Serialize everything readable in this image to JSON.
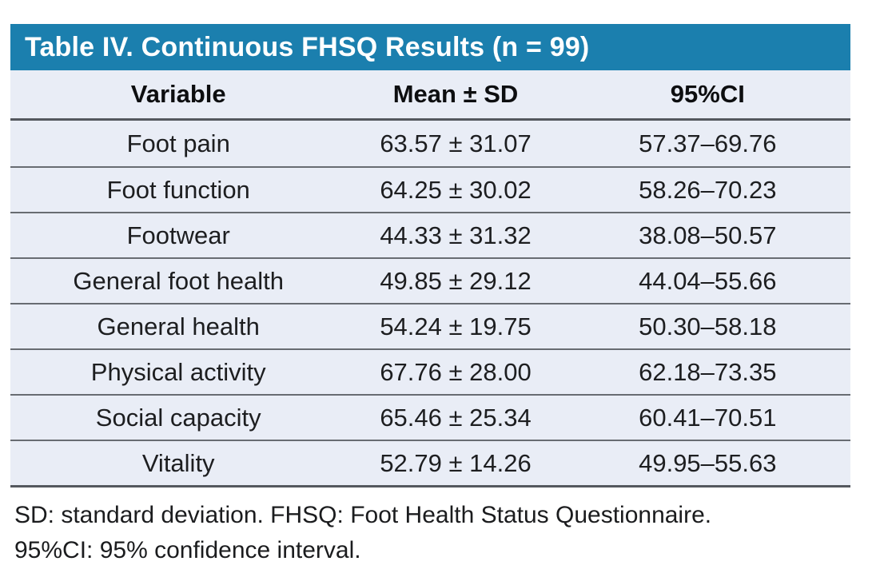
{
  "colors": {
    "accent_teal": "#1b7fae",
    "row_background": "#e9edf6",
    "rule_dark": "#54585e",
    "rule_light": "#686c72"
  },
  "table": {
    "title": "Table IV. Continuous FHSQ Results (n = 99)",
    "columns": [
      "Variable",
      "Mean ± SD",
      "95%CI"
    ],
    "rows": [
      {
        "variable": "Foot pain",
        "mean_sd": "63.57 ± 31.07",
        "ci": "57.37–69.76"
      },
      {
        "variable": "Foot function",
        "mean_sd": "64.25 ± 30.02",
        "ci": "58.26–70.23"
      },
      {
        "variable": "Footwear",
        "mean_sd": "44.33 ± 31.32",
        "ci": "38.08–50.57"
      },
      {
        "variable": "General foot health",
        "mean_sd": "49.85 ± 29.12",
        "ci": "44.04–55.66"
      },
      {
        "variable": "General health",
        "mean_sd": "54.24 ± 19.75",
        "ci": "50.30–58.18"
      },
      {
        "variable": "Physical activity",
        "mean_sd": "67.76 ± 28.00",
        "ci": "62.18–73.35"
      },
      {
        "variable": "Social capacity",
        "mean_sd": "65.46 ± 25.34",
        "ci": "60.41–70.51"
      },
      {
        "variable": "Vitality",
        "mean_sd": "52.79 ± 14.26",
        "ci": "49.95–55.63"
      }
    ],
    "footnotes": [
      "SD: standard deviation. FHSQ: Foot Health Status Questionnaire.",
      "95%CI: 95% confidence interval."
    ]
  }
}
